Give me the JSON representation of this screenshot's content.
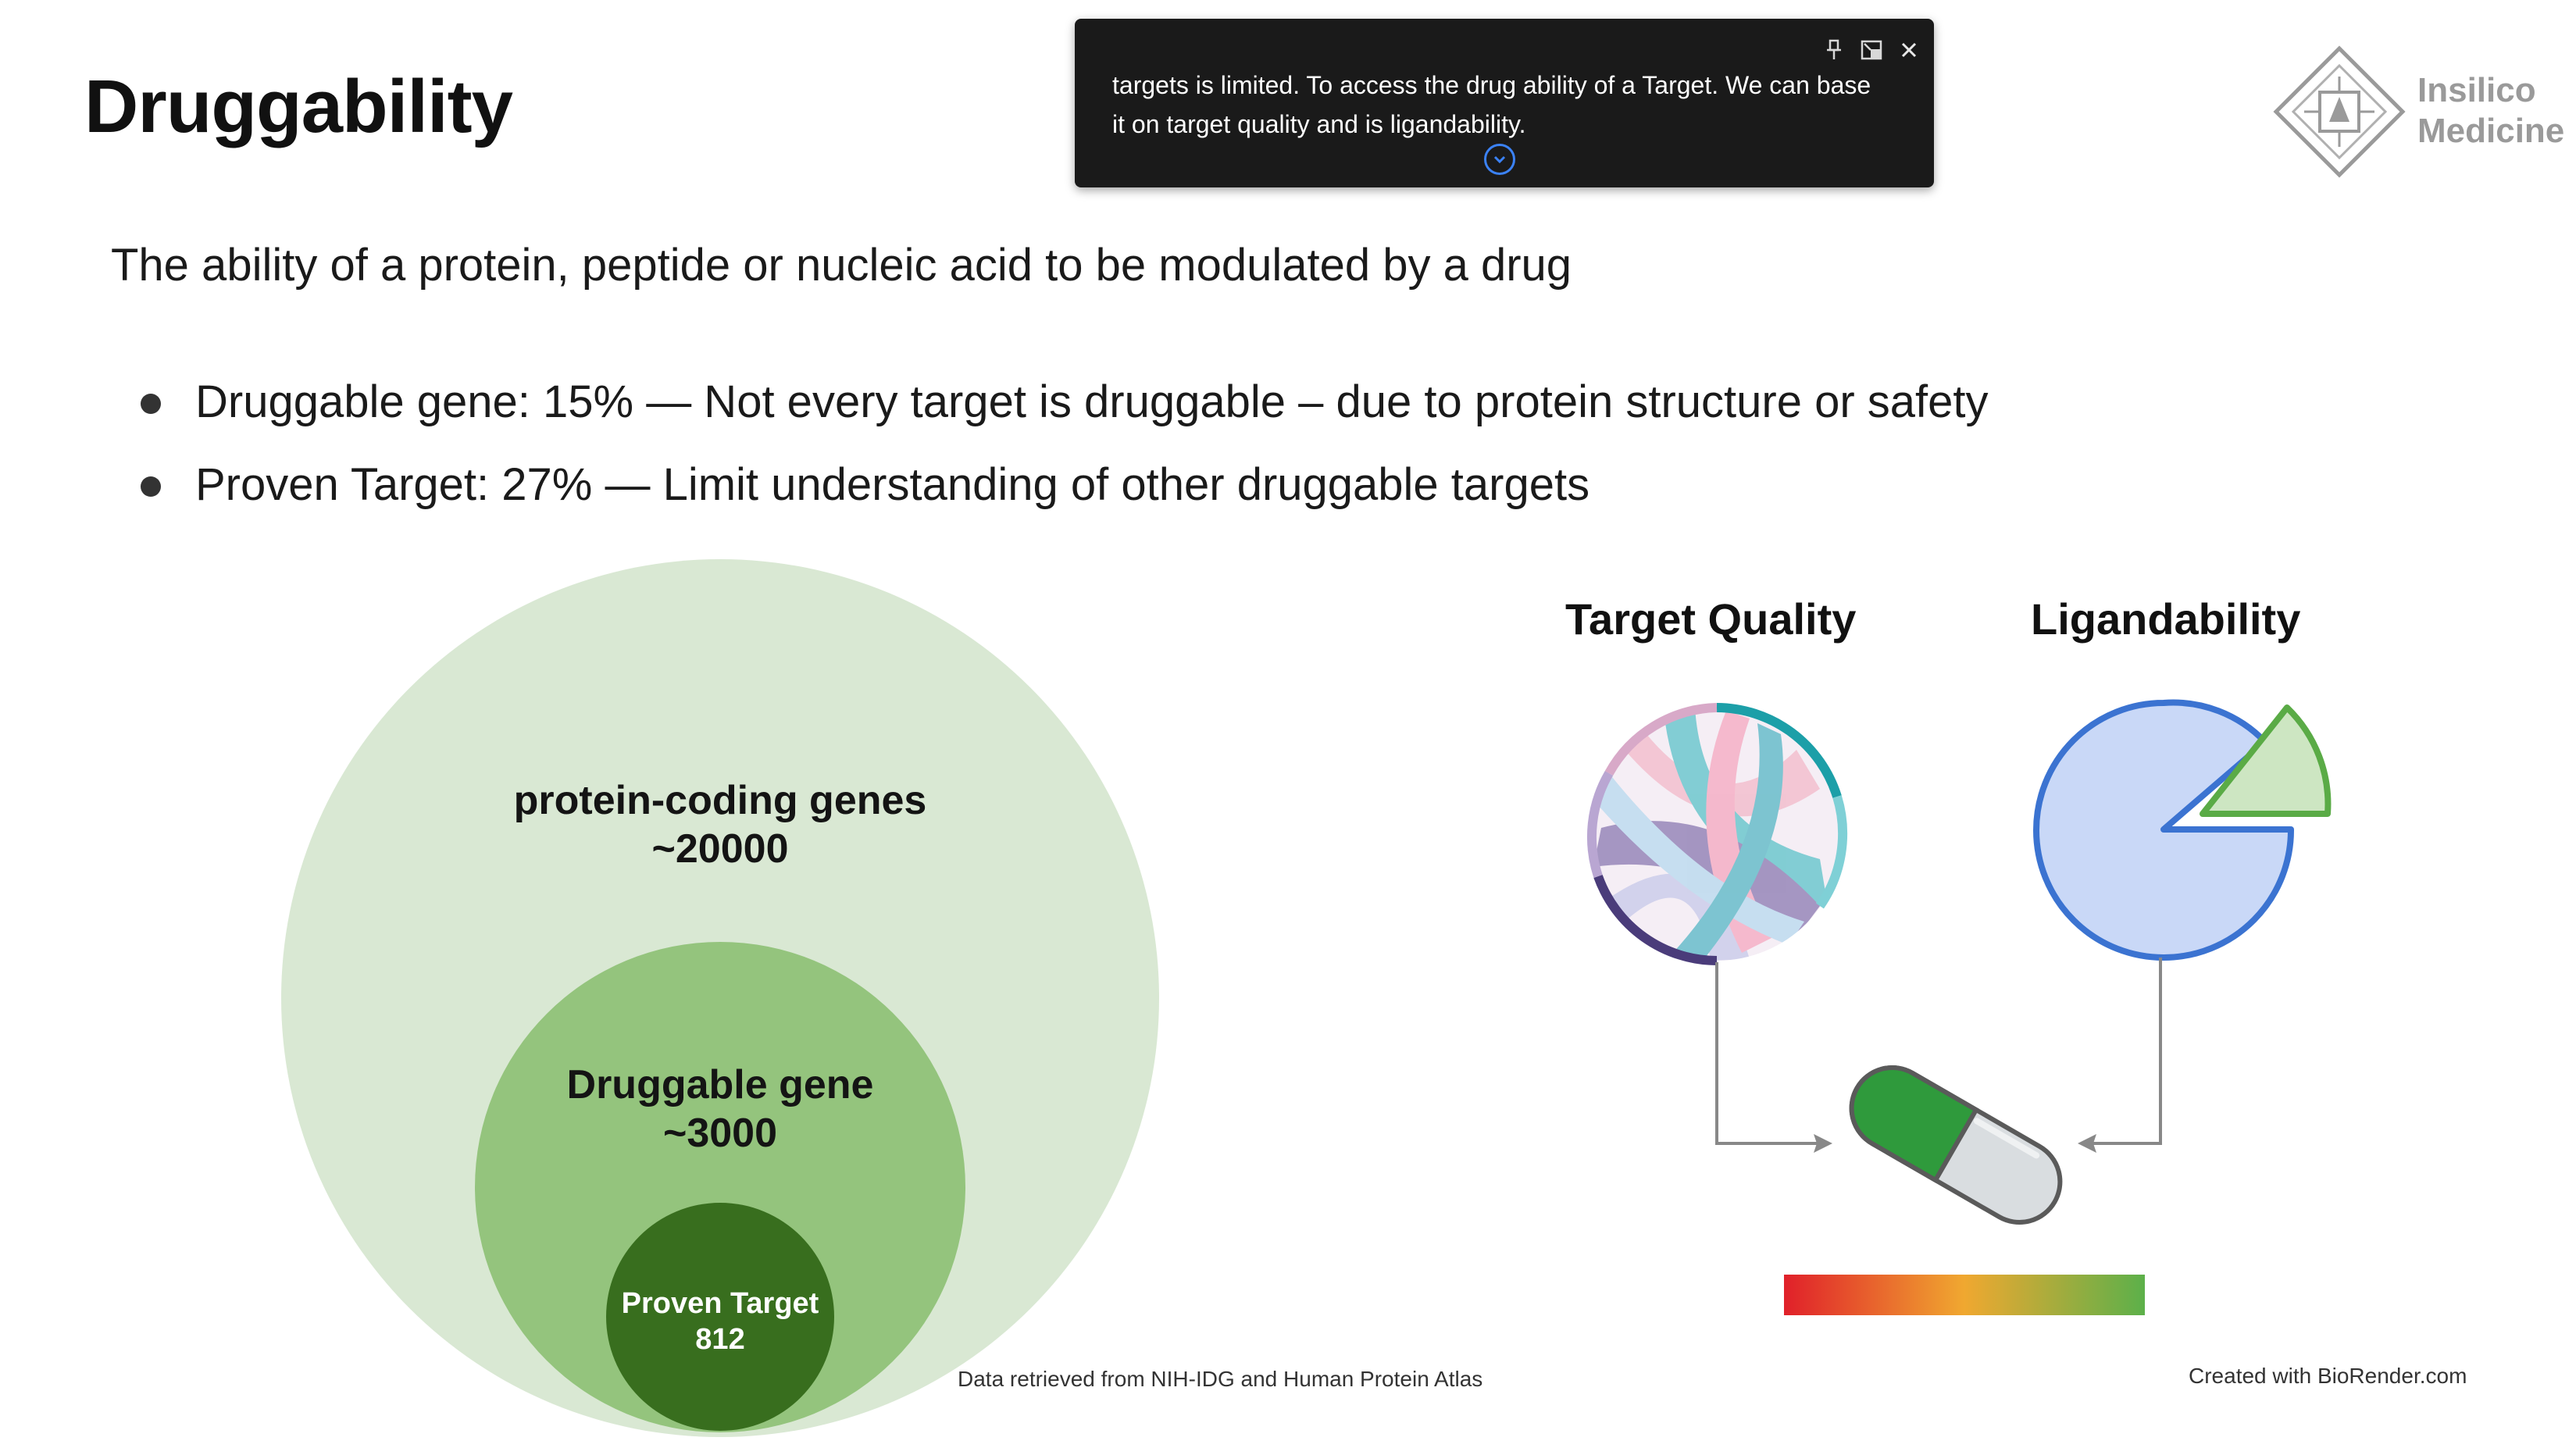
{
  "slide": {
    "title": "Druggability",
    "definition": "The ability of a protein, peptide or nucleic acid to be modulated by a drug",
    "bullets": [
      "Druggable gene: 15% — Not every target is druggable – due to protein structure or safety",
      "Proven Target: 27% — Limit understanding of other druggable targets"
    ]
  },
  "popup": {
    "text": "targets is limited. To access the drug ability of a Target. We can base it on target quality and is ligandability.",
    "pin_icon": "pin-icon",
    "popout_icon": "popout-icon",
    "close_icon": "close-icon",
    "expand_icon": "chevron-down-icon"
  },
  "logo": {
    "line1": "Insilico",
    "line2": "Medicine"
  },
  "venn": {
    "outer": {
      "name": "protein-coding genes",
      "value": "~20000",
      "color": "#d9e8d3"
    },
    "middle": {
      "name": "Druggable gene",
      "value": "~3000",
      "color": "#94c47d"
    },
    "inner": {
      "name": "Proven Target",
      "value": "812",
      "color": "#386e1e"
    },
    "source": "Data retrieved from NIH-IDG and Human Protein Atlas"
  },
  "right_panel": {
    "target_quality_label": "Target Quality",
    "ligandability_label": "Ligandability",
    "credit": "Created with BioRender.com",
    "gradient_colors": [
      "#e0202a",
      "#f0a830",
      "#5cb04a"
    ],
    "pie_color": "#c9d8f7",
    "pie_stroke": "#3b73d1",
    "slice_color": "#cde6c2",
    "slice_stroke": "#5aab46",
    "capsule_left": "#2f9a3c",
    "capsule_right": "#d9dde0"
  }
}
